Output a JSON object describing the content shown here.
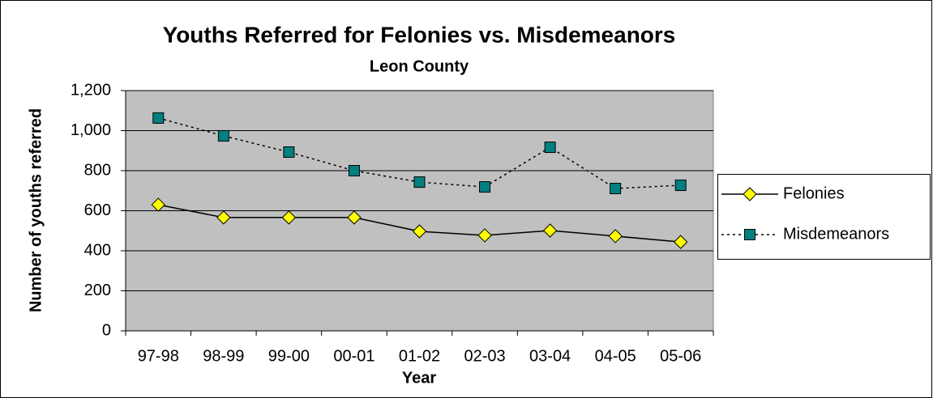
{
  "chart_data": {
    "type": "line",
    "title": "Youths Referred for Felonies vs. Misdemeanors",
    "subtitle": "Leon County",
    "x_label": "Year",
    "y_label": "Number of youths referred",
    "categories": [
      "97-98",
      "98-99",
      "99-00",
      "00-01",
      "01-02",
      "02-03",
      "03-04",
      "04-05",
      "05-06"
    ],
    "series": [
      {
        "name": "Felonies",
        "color": "#ffff00",
        "line_style": "solid",
        "marker": "diamond",
        "values": [
          630,
          566,
          566,
          566,
          497,
          477,
          501,
          473,
          444
        ]
      },
      {
        "name": "Misdemeanors",
        "color": "#008080",
        "line_style": "dotted",
        "marker": "square",
        "values": [
          1063,
          974,
          893,
          800,
          743,
          719,
          917,
          711,
          727
        ]
      }
    ],
    "ylim": [
      0,
      1200
    ],
    "yticks": [
      0,
      200,
      400,
      600,
      800,
      {
        "value": 1000,
        "label": "1,000"
      },
      {
        "value": 1200,
        "label": "1,200"
      }
    ],
    "grid": true,
    "plot_background": "#c0c0c0",
    "legend": "right"
  }
}
